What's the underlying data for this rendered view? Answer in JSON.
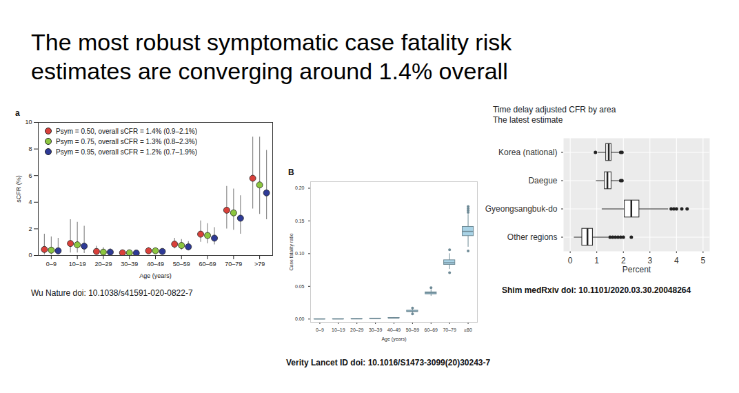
{
  "title": "The most robust symptomatic case fatality risk\nestimates are converging around 1.4% overall",
  "chart_data": [
    {
      "type": "scatter",
      "panel_label": "a",
      "caption": "Wu Nature doi: 10.1038/s41591-020-0822-7",
      "x_label": "Age (years)",
      "y_label": "sCFR (%)",
      "categories": [
        "0–9",
        "10–19",
        "20–29",
        "30–39",
        "40–49",
        "50–59",
        "60–69",
        "70–79",
        ">79"
      ],
      "ylim": [
        0,
        10
      ],
      "yticks": [
        0,
        2,
        4,
        6,
        8,
        10
      ],
      "legend": "top-left",
      "marker": "circle",
      "series": [
        {
          "name": "Psym = 0.50, overall sCFR = 1.4% (0.9–2.1%)",
          "color": "#d9403a",
          "values": [
            0.45,
            0.9,
            0.3,
            0.2,
            0.35,
            0.85,
            1.6,
            3.4,
            5.8
          ],
          "error_low": [
            0.05,
            0.2,
            0.1,
            0.1,
            0.2,
            0.5,
            1.0,
            2.0,
            3.5
          ],
          "error_high": [
            1.6,
            2.7,
            0.7,
            0.4,
            0.6,
            1.3,
            2.6,
            5.2,
            8.9
          ]
        },
        {
          "name": "Psym = 0.75, overall sCFR = 1.3% (0.8–2.3%)",
          "color": "#8cc63f",
          "values": [
            0.4,
            0.8,
            0.25,
            0.2,
            0.35,
            0.75,
            1.5,
            3.2,
            5.3
          ],
          "error_low": [
            0.05,
            0.2,
            0.1,
            0.1,
            0.2,
            0.4,
            0.9,
            1.9,
            3.1
          ],
          "error_high": [
            1.4,
            2.5,
            0.6,
            0.35,
            0.55,
            1.2,
            2.4,
            5.0,
            8.9
          ]
        },
        {
          "name": "Psym = 0.95, overall sCFR = 1.2% (0.7–1.9%)",
          "color": "#2e3a96",
          "values": [
            0.35,
            0.7,
            0.25,
            0.18,
            0.3,
            0.65,
            1.3,
            2.8,
            4.7
          ],
          "error_low": [
            0.05,
            0.15,
            0.1,
            0.08,
            0.15,
            0.35,
            0.8,
            1.6,
            2.7
          ],
          "error_high": [
            1.3,
            2.2,
            0.5,
            0.3,
            0.5,
            1.05,
            2.1,
            4.5,
            7.9
          ]
        }
      ]
    },
    {
      "type": "box",
      "panel_label": "B",
      "caption": "Verity Lancet ID doi: 10.1016/S1473-3099(20)30243-7",
      "x_label": "Age (years)",
      "y_label": "Case fatality ratio",
      "categories": [
        "0–9",
        "10–19",
        "20–29",
        "30–39",
        "40–49",
        "50–59",
        "60–69",
        "70–79",
        "≥80"
      ],
      "ylim": [
        -0.005,
        0.21
      ],
      "yticks": [
        {
          "value": 0,
          "label": "0.00"
        },
        {
          "value": 0.05,
          "label": "0.05"
        },
        {
          "value": 0.1,
          "label": "0.10"
        },
        {
          "value": 0.15,
          "label": "0.15"
        },
        {
          "value": 0.2,
          "label": "0.20"
        }
      ],
      "color": "#a9d3e6",
      "median": [
        2e-05,
        0.0001,
        0.0003,
        0.0008,
        0.0016,
        0.012,
        0.04,
        0.086,
        0.134
      ],
      "q1": [
        1e-05,
        8e-05,
        0.00025,
        0.0007,
        0.0014,
        0.011,
        0.038,
        0.083,
        0.127
      ],
      "q3": [
        3e-05,
        0.00012,
        0.00035,
        0.0009,
        0.0018,
        0.013,
        0.041,
        0.09,
        0.141
      ],
      "whisker_low": [
        0.0,
        5e-05,
        0.0002,
        0.0005,
        0.001,
        0.009,
        0.035,
        0.076,
        0.11
      ],
      "whisker_high": [
        5e-05,
        0.0002,
        0.0005,
        0.0012,
        0.0025,
        0.015,
        0.045,
        0.1,
        0.16
      ],
      "outliers": [
        [],
        [],
        [],
        [],
        [],
        [
          0.008,
          0.017
        ],
        [
          0.048
        ],
        [
          0.071,
          0.106
        ],
        [
          0.104,
          0.163,
          0.166,
          0.169,
          0.172
        ]
      ]
    },
    {
      "type": "box",
      "orientation": "horizontal",
      "title": "Time delay adjusted CFR by area\nThe latest estimate",
      "caption": "Shim medRxiv doi: 10.1101/2020.03.30.20048264",
      "x_label": "Percent",
      "categories": [
        "Korea (national)",
        "Daegue",
        "Gyeongsangbuk-do",
        "Other regions"
      ],
      "xlim": [
        -0.25,
        5.25
      ],
      "xticks": [
        0,
        1,
        2,
        3,
        4,
        5
      ],
      "grid": true,
      "color": "#ffffff",
      "median": [
        1.45,
        1.4,
        2.3,
        0.65
      ],
      "q1": [
        1.35,
        1.3,
        2.05,
        0.45
      ],
      "q3": [
        1.55,
        1.55,
        2.6,
        0.85
      ],
      "whisker_low": [
        1.05,
        0.98,
        1.2,
        0.15
      ],
      "whisker_high": [
        1.85,
        1.85,
        3.7,
        1.45
      ],
      "outliers": [
        [
          0.95,
          1.9,
          1.95
        ],
        [
          1.9,
          1.95
        ],
        [
          3.8,
          3.9,
          4.0,
          4.2,
          4.4
        ],
        [
          1.5,
          1.6,
          1.7,
          1.8,
          1.9,
          2.0,
          2.3
        ]
      ]
    }
  ]
}
